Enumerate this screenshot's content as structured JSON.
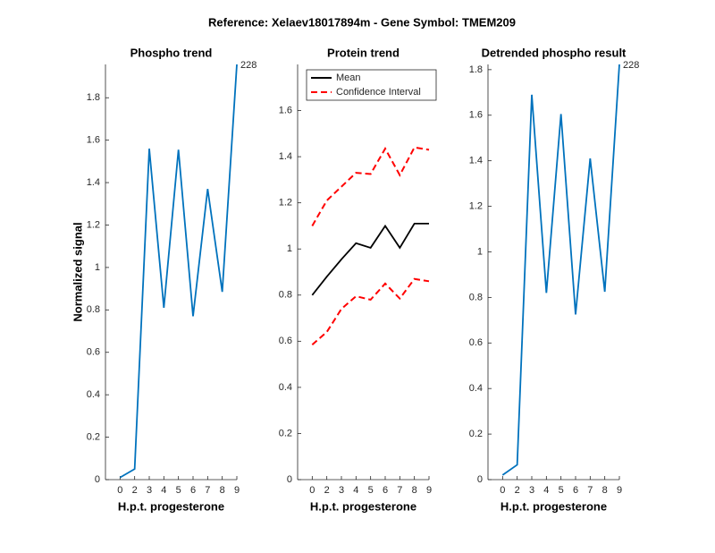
{
  "title": "Reference:  Xelaev18017894m - Gene Symbol:  TMEM209",
  "chart_data": [
    {
      "type": "line",
      "title": "Phospho trend",
      "xlabel": "H.p.t. progesterone",
      "ylabel": "Normalized signal",
      "categories": [
        "0",
        "2",
        "3",
        "4",
        "5",
        "6",
        "7",
        "8",
        "9"
      ],
      "series": [
        {
          "color": "#0072bd",
          "values": [
            0.01,
            0.05,
            1.56,
            0.81,
            1.555,
            0.77,
            1.37,
            0.885,
            1.957
          ]
        }
      ],
      "annotation": "228",
      "ylim": [
        0,
        1.957
      ],
      "yticks": [
        0,
        0.2,
        0.4,
        0.6,
        0.8,
        1,
        1.2,
        1.4,
        1.6,
        1.8
      ]
    },
    {
      "type": "line",
      "title": "Protein trend",
      "xlabel": "H.p.t. progesterone",
      "categories": [
        "0",
        "2",
        "3",
        "4",
        "5",
        "6",
        "7",
        "8",
        "9"
      ],
      "series": [
        {
          "name": "Mean",
          "color": "#000000",
          "values": [
            0.8,
            0.88,
            0.955,
            1.025,
            1.005,
            1.1,
            1.005,
            1.11,
            1.11
          ]
        },
        {
          "name": "Confidence Interval",
          "color": "#ff0000",
          "dashed": true,
          "values": [
            1.1,
            1.21,
            1.27,
            1.33,
            1.325,
            1.435,
            1.32,
            1.44,
            1.43
          ],
          "lower": [
            0.585,
            0.64,
            0.74,
            0.795,
            0.78,
            0.85,
            0.785,
            0.87,
            0.86
          ]
        }
      ],
      "legend": "upper-left",
      "ylim": [
        0,
        1.8
      ],
      "yticks": [
        0,
        0.2,
        0.4,
        0.6,
        0.8,
        1,
        1.2,
        1.4,
        1.6
      ]
    },
    {
      "type": "line",
      "title": "Detrended phospho result",
      "xlabel": "H.p.t. progesterone",
      "categories": [
        "0",
        "2",
        "3",
        "4",
        "5",
        "6",
        "7",
        "8",
        "9"
      ],
      "series": [
        {
          "color": "#0072bd",
          "values": [
            0.02,
            0.065,
            1.69,
            0.82,
            1.605,
            0.725,
            1.41,
            0.825,
            1.823
          ]
        }
      ],
      "annotation": "228",
      "ylim": [
        0,
        1.823
      ],
      "yticks": [
        0,
        0.2,
        0.4,
        0.6,
        0.8,
        1,
        1.2,
        1.4,
        1.6,
        1.8
      ]
    }
  ]
}
